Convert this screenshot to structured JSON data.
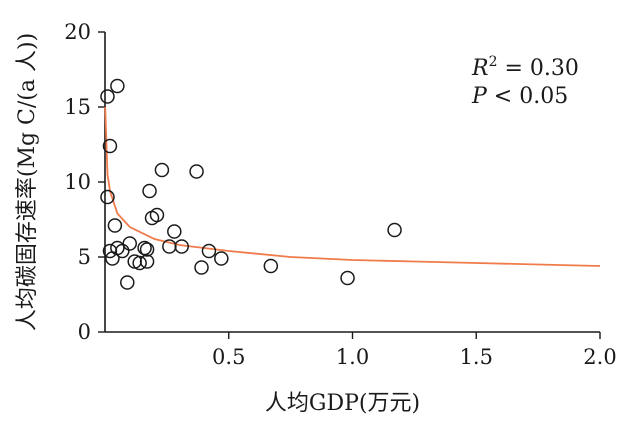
{
  "chart_data": {
    "type": "scatter",
    "xlabel": "人均GDP(万元)",
    "ylabel": "人均碳固存速率(Mg C/(a 人))",
    "xlim": [
      0,
      2.0
    ],
    "ylim": [
      0,
      20
    ],
    "x_ticks": [
      "0.5",
      "1.0",
      "1.5",
      "2.0"
    ],
    "y_ticks": [
      "0",
      "5",
      "10",
      "15",
      "20"
    ],
    "annotation_r2_label": "R",
    "annotation_r2_sup": "2",
    "annotation_r2_value": " = 0.30",
    "annotation_p_label": "P",
    "annotation_p_value": " < 0.05",
    "points": [
      {
        "x": 0.01,
        "y": 15.7
      },
      {
        "x": 0.05,
        "y": 16.4
      },
      {
        "x": 0.02,
        "y": 12.4
      },
      {
        "x": 0.01,
        "y": 9.0
      },
      {
        "x": 0.02,
        "y": 5.4
      },
      {
        "x": 0.03,
        "y": 4.9
      },
      {
        "x": 0.04,
        "y": 7.1
      },
      {
        "x": 0.05,
        "y": 5.6
      },
      {
        "x": 0.07,
        "y": 5.4
      },
      {
        "x": 0.09,
        "y": 3.3
      },
      {
        "x": 0.1,
        "y": 5.9
      },
      {
        "x": 0.12,
        "y": 4.7
      },
      {
        "x": 0.14,
        "y": 4.6
      },
      {
        "x": 0.16,
        "y": 5.6
      },
      {
        "x": 0.17,
        "y": 4.7
      },
      {
        "x": 0.17,
        "y": 5.5
      },
      {
        "x": 0.18,
        "y": 9.4
      },
      {
        "x": 0.19,
        "y": 7.6
      },
      {
        "x": 0.21,
        "y": 7.8
      },
      {
        "x": 0.23,
        "y": 10.8
      },
      {
        "x": 0.26,
        "y": 5.7
      },
      {
        "x": 0.28,
        "y": 6.7
      },
      {
        "x": 0.31,
        "y": 5.7
      },
      {
        "x": 0.37,
        "y": 10.7
      },
      {
        "x": 0.39,
        "y": 4.3
      },
      {
        "x": 0.42,
        "y": 5.4
      },
      {
        "x": 0.47,
        "y": 4.9
      },
      {
        "x": 0.67,
        "y": 4.4
      },
      {
        "x": 0.98,
        "y": 3.6
      },
      {
        "x": 1.17,
        "y": 6.8
      }
    ],
    "trendline": {
      "model": "power",
      "color": "#f07b4a",
      "x": [
        0.001,
        0.01,
        0.02,
        0.05,
        0.1,
        0.2,
        0.3,
        0.5,
        0.75,
        1.0,
        1.25,
        1.5,
        1.75,
        2.0
      ],
      "y": [
        15.0,
        10.5,
        9.4,
        7.9,
        7.0,
        6.2,
        5.8,
        5.4,
        5.0,
        4.8,
        4.7,
        4.6,
        4.5,
        4.4
      ]
    },
    "colors": {
      "axis": "#1a1a1a",
      "marker_stroke": "#1a1a1a",
      "marker_fill": "none"
    },
    "grid": false
  }
}
